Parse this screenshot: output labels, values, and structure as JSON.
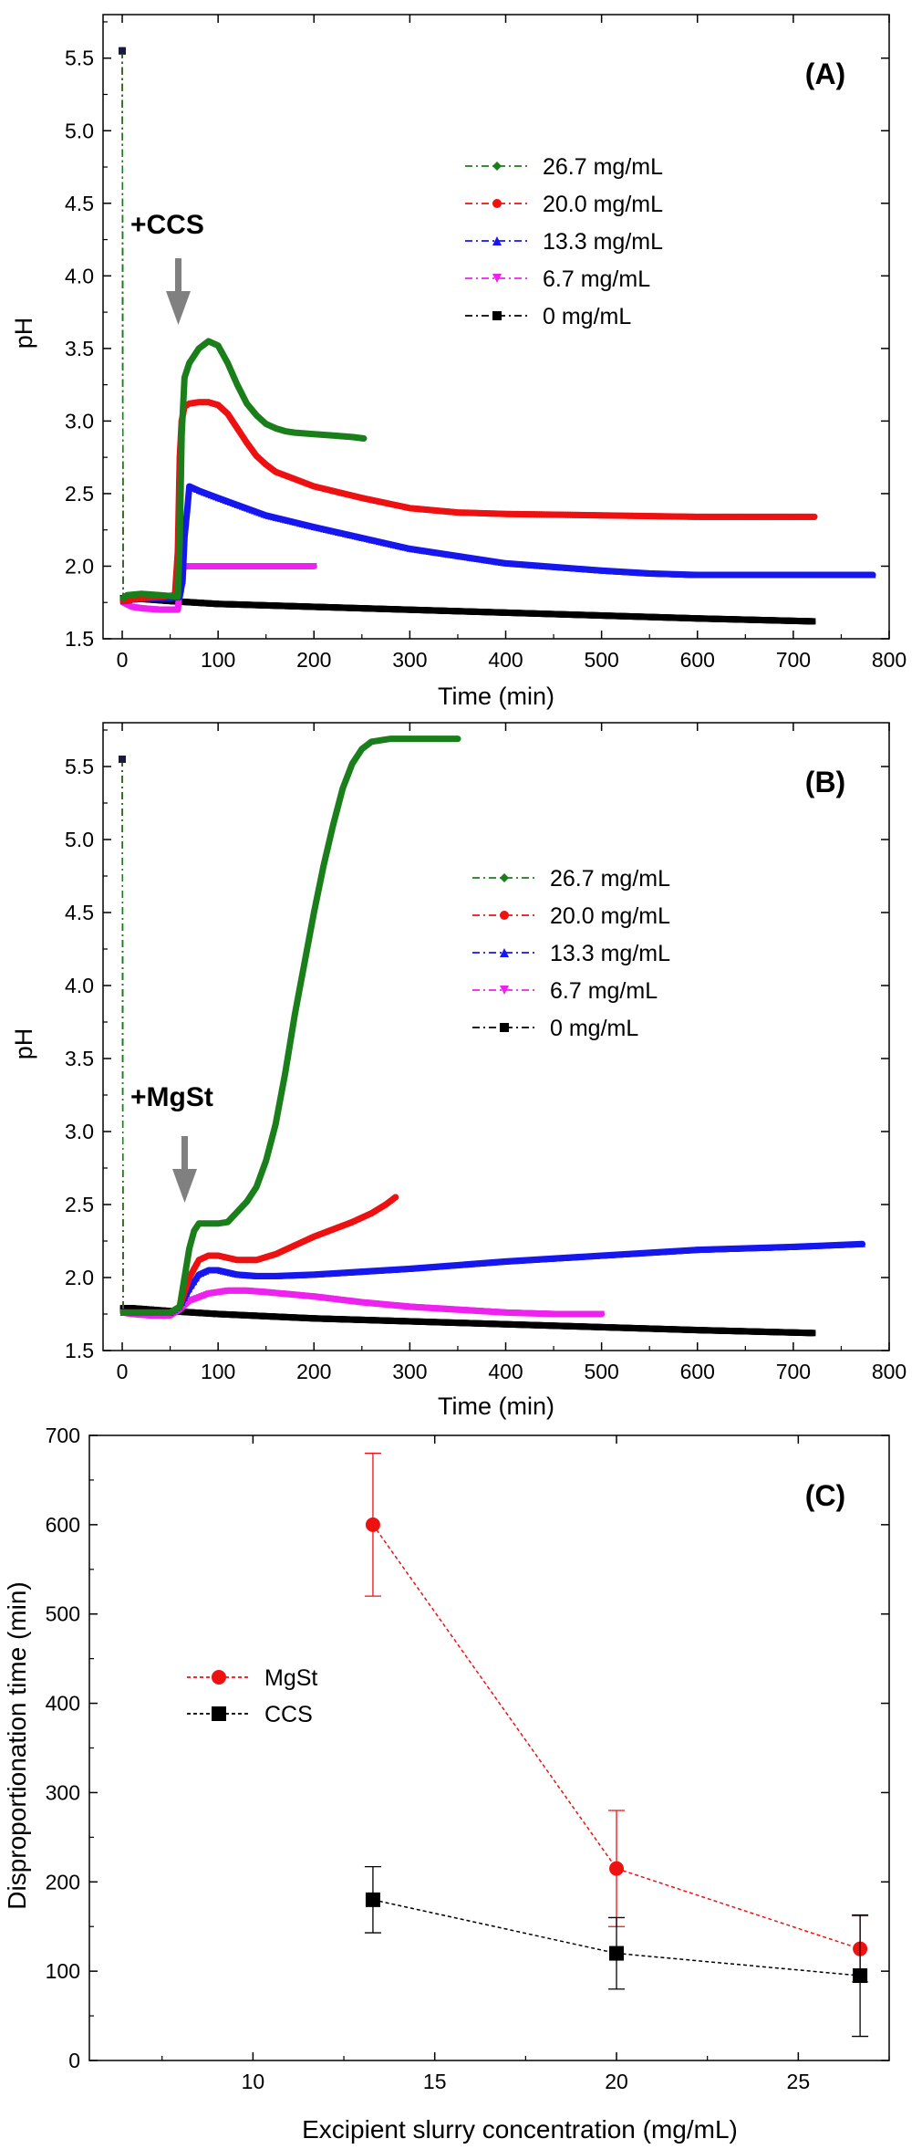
{
  "panels": [
    {
      "label": "(A)",
      "xlabel": "Time (min)",
      "ylabel": "pH",
      "annotation": "+CCS"
    },
    {
      "label": "(B)",
      "xlabel": "Time (min)",
      "ylabel": "pH",
      "annotation": "+MgSt"
    },
    {
      "label": "(C)",
      "xlabel": "Excipient slurry concentration (mg/mL)",
      "ylabel": "Disproportionation time (min)",
      "annotation": ""
    }
  ],
  "chart_data": [
    {
      "type": "line",
      "panel": "(A)",
      "xlabel": "Time (min)",
      "ylabel": "pH",
      "xlim": [
        -20,
        800
      ],
      "ylim": [
        1.5,
        5.8
      ],
      "xticks": [
        0,
        100,
        200,
        300,
        400,
        500,
        600,
        700,
        800
      ],
      "yticks": [
        1.5,
        2.0,
        2.5,
        3.0,
        3.5,
        4.0,
        4.5,
        5.0,
        5.5
      ],
      "legend_position": "top-right",
      "annotation": "+CCS",
      "series": [
        {
          "name": "26.7 mg/mL",
          "color": "#1a7f1a",
          "marker": "diamond",
          "x": [
            0,
            1,
            5,
            20,
            40,
            58,
            60,
            62,
            65,
            70,
            80,
            90,
            100,
            110,
            120,
            130,
            140,
            150,
            160,
            170,
            180,
            200,
            220,
            240,
            252
          ],
          "y": [
            5.55,
            1.78,
            1.8,
            1.81,
            1.8,
            1.79,
            2.17,
            2.9,
            3.3,
            3.4,
            3.5,
            3.55,
            3.52,
            3.4,
            3.25,
            3.12,
            3.04,
            2.98,
            2.95,
            2.93,
            2.92,
            2.91,
            2.9,
            2.89,
            2.88
          ]
        },
        {
          "name": "20.0 mg/mL",
          "color": "#ee1111",
          "marker": "circle",
          "x": [
            0,
            1,
            10,
            20,
            40,
            55,
            58,
            60,
            62,
            65,
            70,
            80,
            90,
            100,
            110,
            120,
            130,
            140,
            150,
            160,
            180,
            200,
            250,
            300,
            350,
            400,
            500,
            600,
            700,
            722
          ],
          "y": [
            5.55,
            1.76,
            1.77,
            1.78,
            1.79,
            1.8,
            2.1,
            2.75,
            3.0,
            3.1,
            3.12,
            3.13,
            3.13,
            3.11,
            3.05,
            2.95,
            2.85,
            2.76,
            2.7,
            2.65,
            2.6,
            2.55,
            2.47,
            2.4,
            2.37,
            2.36,
            2.35,
            2.34,
            2.34,
            2.34
          ]
        },
        {
          "name": "13.3 mg/mL",
          "color": "#1616ee",
          "marker": "triangle-up",
          "x": [
            0,
            1,
            10,
            30,
            50,
            60,
            63,
            65,
            68,
            70,
            80,
            100,
            150,
            200,
            300,
            400,
            500,
            550,
            600,
            700,
            783
          ],
          "y": [
            5.55,
            1.76,
            1.77,
            1.78,
            1.78,
            1.79,
            1.9,
            2.2,
            2.4,
            2.55,
            2.52,
            2.47,
            2.35,
            2.27,
            2.12,
            2.02,
            1.97,
            1.95,
            1.94,
            1.94,
            1.94
          ]
        },
        {
          "name": "6.7 mg/mL",
          "color": "#ee22ee",
          "marker": "triangle-down",
          "x": [
            0,
            1,
            10,
            20,
            40,
            58,
            60,
            62,
            65,
            70,
            100,
            150,
            200
          ],
          "y": [
            5.55,
            1.75,
            1.72,
            1.71,
            1.7,
            1.7,
            1.85,
            1.95,
            2.0,
            2.0,
            2.0,
            2.0,
            2.0
          ]
        },
        {
          "name": "0 mg/mL",
          "color": "#000000",
          "marker": "square",
          "x": [
            0,
            1,
            10,
            50,
            100,
            200,
            300,
            400,
            500,
            600,
            720
          ],
          "y": [
            5.55,
            1.78,
            1.78,
            1.76,
            1.74,
            1.72,
            1.7,
            1.68,
            1.66,
            1.64,
            1.62
          ]
        }
      ]
    },
    {
      "type": "line",
      "panel": "(B)",
      "xlabel": "Time (min)",
      "ylabel": "pH",
      "xlim": [
        -20,
        800
      ],
      "ylim": [
        1.5,
        5.8
      ],
      "xticks": [
        0,
        100,
        200,
        300,
        400,
        500,
        600,
        700,
        800
      ],
      "yticks": [
        1.5,
        2.0,
        2.5,
        3.0,
        3.5,
        4.0,
        4.5,
        5.0,
        5.5
      ],
      "legend_position": "center-right",
      "annotation": "+MgSt",
      "series": [
        {
          "name": "26.7 mg/mL",
          "color": "#1a7f1a",
          "marker": "diamond",
          "x": [
            0,
            1,
            10,
            30,
            50,
            60,
            65,
            70,
            75,
            80,
            90,
            100,
            110,
            120,
            130,
            140,
            150,
            160,
            170,
            180,
            190,
            200,
            210,
            220,
            230,
            240,
            250,
            260,
            270,
            280,
            300,
            320,
            350
          ],
          "y": [
            5.55,
            1.76,
            1.76,
            1.76,
            1.76,
            1.8,
            2.0,
            2.2,
            2.32,
            2.37,
            2.37,
            2.37,
            2.38,
            2.45,
            2.52,
            2.62,
            2.8,
            3.05,
            3.4,
            3.8,
            4.15,
            4.5,
            4.82,
            5.1,
            5.35,
            5.52,
            5.62,
            5.67,
            5.68,
            5.69,
            5.69,
            5.69,
            5.69
          ]
        },
        {
          "name": "20.0 mg/mL",
          "color": "#ee1111",
          "marker": "circle",
          "x": [
            0,
            1,
            10,
            30,
            50,
            60,
            70,
            80,
            90,
            100,
            120,
            140,
            160,
            180,
            200,
            220,
            240,
            260,
            275,
            285
          ],
          "y": [
            5.55,
            1.76,
            1.76,
            1.76,
            1.76,
            1.8,
            2.0,
            2.12,
            2.15,
            2.15,
            2.12,
            2.12,
            2.16,
            2.22,
            2.28,
            2.33,
            2.38,
            2.44,
            2.5,
            2.55
          ]
        },
        {
          "name": "13.3 mg/mL",
          "color": "#1616ee",
          "marker": "triangle-up",
          "x": [
            0,
            1,
            10,
            30,
            50,
            60,
            70,
            80,
            90,
            100,
            120,
            140,
            160,
            200,
            300,
            400,
            500,
            600,
            700,
            772
          ],
          "y": [
            5.55,
            1.76,
            1.76,
            1.76,
            1.76,
            1.8,
            1.92,
            2.02,
            2.05,
            2.05,
            2.02,
            2.01,
            2.01,
            2.02,
            2.06,
            2.11,
            2.15,
            2.19,
            2.21,
            2.23
          ]
        },
        {
          "name": "6.7 mg/mL",
          "color": "#ee22ee",
          "marker": "triangle-down",
          "x": [
            0,
            1,
            10,
            30,
            50,
            60,
            70,
            90,
            110,
            130,
            150,
            200,
            250,
            300,
            350,
            400,
            450,
            500
          ],
          "y": [
            5.55,
            1.76,
            1.75,
            1.74,
            1.74,
            1.78,
            1.84,
            1.89,
            1.91,
            1.91,
            1.9,
            1.87,
            1.83,
            1.8,
            1.78,
            1.76,
            1.75,
            1.75
          ]
        },
        {
          "name": "0 mg/mL",
          "color": "#000000",
          "marker": "square",
          "x": [
            0,
            1,
            10,
            50,
            100,
            200,
            300,
            400,
            500,
            600,
            720
          ],
          "y": [
            5.55,
            1.79,
            1.79,
            1.77,
            1.75,
            1.72,
            1.7,
            1.68,
            1.66,
            1.64,
            1.62
          ]
        }
      ]
    },
    {
      "type": "scatter",
      "panel": "(C)",
      "xlabel": "Excipient slurry concentration (mg/mL)",
      "ylabel": "Disproportionation time (min)",
      "xlim": [
        5.5,
        27.5
      ],
      "ylim": [
        0,
        700
      ],
      "xticks": [
        10,
        15,
        20,
        25
      ],
      "yticks": [
        0,
        100,
        200,
        300,
        400,
        500,
        600,
        700
      ],
      "legend_position": "center-left",
      "series": [
        {
          "name": "MgSt",
          "color": "#ee1111",
          "marker": "circle",
          "x": [
            13.3,
            20.0,
            26.7
          ],
          "y": [
            600,
            215,
            125
          ],
          "err": [
            80,
            65,
            37
          ]
        },
        {
          "name": "CCS",
          "color": "#000000",
          "marker": "square",
          "x": [
            13.3,
            20.0,
            26.7
          ],
          "y": [
            180,
            120,
            95
          ],
          "err": [
            37,
            40,
            68
          ]
        }
      ]
    }
  ]
}
